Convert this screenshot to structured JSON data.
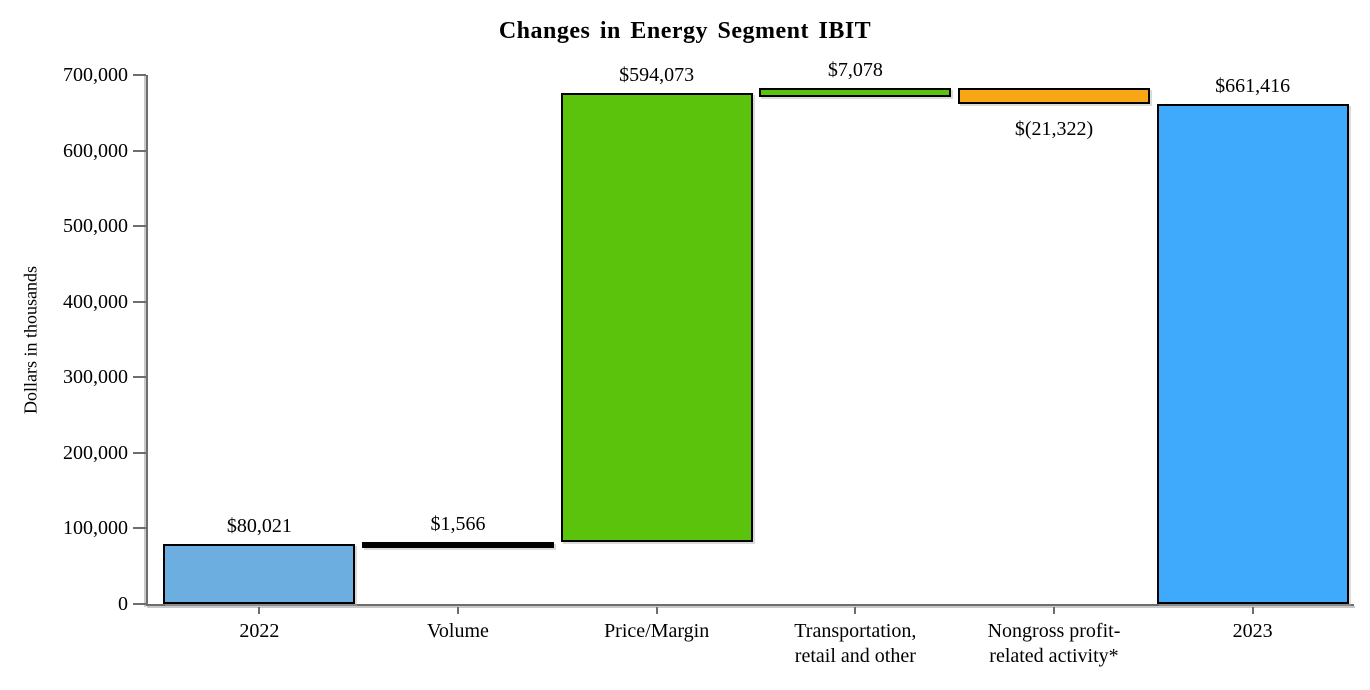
{
  "chart_data": {
    "type": "bar",
    "subtype": "waterfall",
    "title": "Changes in Energy Segment IBIT",
    "ylabel": "Dollars in thousands",
    "xlabel": "",
    "ylim": [
      0,
      700000
    ],
    "ytick_interval": 100000,
    "yticks": [
      "0",
      "100,000",
      "200,000",
      "300,000",
      "400,000",
      "500,000",
      "600,000",
      "700,000"
    ],
    "grid": false,
    "legend": false,
    "axis_color": "#6e6e6e",
    "bar_border_color": "#000000",
    "categories": [
      "2022",
      "Volume",
      "Price/Margin",
      "Transportation, retail and other",
      "Nongross profit-related activity*",
      "2023"
    ],
    "steps": [
      {
        "name": "2022",
        "lines": [
          "2022"
        ],
        "value": 80021,
        "display": "$80,021",
        "kind": "total",
        "color": "#6BAEDF",
        "label_position": "above"
      },
      {
        "name": "volume",
        "lines": [
          "Volume"
        ],
        "value": 1566,
        "display": "$1,566",
        "kind": "delta",
        "color": "#000000",
        "label_position": "above"
      },
      {
        "name": "price-margin",
        "lines": [
          "Price/Margin"
        ],
        "value": 594073,
        "display": "$594,073",
        "kind": "delta",
        "color": "#5CC30D",
        "label_position": "above"
      },
      {
        "name": "transportation-retail-other",
        "lines": [
          "Transportation,",
          "retail and other"
        ],
        "value": 7078,
        "display": "$7,078",
        "kind": "delta",
        "color": "#5CC30D",
        "label_position": "above"
      },
      {
        "name": "nongross-profit-activity",
        "lines": [
          "Nongross profit-",
          "related activity*"
        ],
        "value": -21322,
        "display": "$(21,322)",
        "kind": "delta",
        "color": "#F6A713",
        "label_position": "below"
      },
      {
        "name": "2023",
        "lines": [
          "2023"
        ],
        "value": 661416,
        "display": "$661,416",
        "kind": "total",
        "color": "#3FAAFB",
        "label_position": "above"
      }
    ]
  }
}
